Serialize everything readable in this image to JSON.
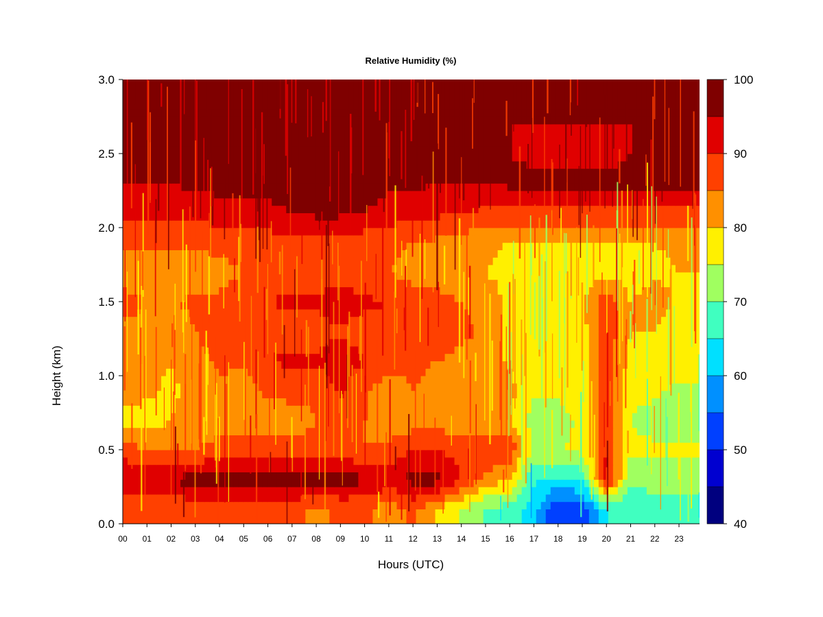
{
  "chart_data": {
    "type": "heatmap",
    "title": "Relative Humidity (%)",
    "xlabel": "Hours (UTC)",
    "ylabel": "Height (km)",
    "x_ticks": [
      "00",
      "01",
      "02",
      "03",
      "04",
      "05",
      "06",
      "07",
      "08",
      "09",
      "10",
      "11",
      "12",
      "13",
      "14",
      "15",
      "16",
      "17",
      "18",
      "19",
      "20",
      "21",
      "22",
      "23"
    ],
    "y_ticks": [
      "0.0",
      "0.5",
      "1.0",
      "1.5",
      "2.0",
      "2.5",
      "3.0"
    ],
    "xlim": [
      0,
      23.85
    ],
    "ylim": [
      0,
      3.0
    ],
    "grid": false,
    "colorbar": {
      "levels": [
        40,
        45,
        50,
        55,
        60,
        65,
        70,
        75,
        80,
        85,
        90,
        95,
        100
      ],
      "labels": [
        "40",
        "50",
        "60",
        "70",
        "80",
        "90",
        "100"
      ],
      "colors": [
        "#00007F",
        "#0000D0",
        "#0040FF",
        "#0090FF",
        "#00E0FF",
        "#40FFC0",
        "#A0FF60",
        "#FFF000",
        "#FF9000",
        "#FF4000",
        "#E00000",
        "#7F0000"
      ]
    },
    "x": [
      0,
      1,
      2,
      3,
      4,
      5,
      6,
      7,
      8,
      9,
      10,
      11,
      12,
      13,
      14,
      15,
      16,
      17,
      18,
      19,
      20,
      21,
      22,
      23
    ],
    "y": [
      0.1,
      0.3,
      0.5,
      0.7,
      0.9,
      1.1,
      1.3,
      1.5,
      1.7,
      1.9,
      2.1,
      2.3,
      2.5,
      2.7,
      2.9
    ],
    "z": [
      [
        86,
        86,
        86,
        86,
        88,
        86,
        86,
        86,
        84,
        86,
        86,
        82,
        86,
        80,
        75,
        70,
        68,
        62,
        50,
        52,
        65,
        66,
        66,
        67
      ],
      [
        96,
        95,
        96,
        97,
        97,
        98,
        98,
        98,
        98,
        97,
        96,
        93,
        97,
        97,
        90,
        83,
        80,
        66,
        64,
        66,
        92,
        71,
        73,
        72
      ],
      [
        87,
        85,
        84,
        85,
        87,
        88,
        88,
        87,
        87,
        87,
        85,
        86,
        90,
        90,
        88,
        90,
        89,
        74,
        74,
        77,
        90,
        76,
        76,
        76
      ],
      [
        78,
        78,
        80,
        82,
        83,
        82,
        82,
        82,
        85,
        85,
        85,
        82,
        82,
        83,
        80,
        82,
        80,
        73,
        73,
        76,
        88,
        75,
        73,
        71
      ],
      [
        82,
        81,
        79,
        82,
        84,
        82,
        86,
        87,
        86,
        91,
        86,
        82,
        85,
        83,
        82,
        82,
        82,
        76,
        76,
        78,
        88,
        76,
        76,
        74
      ],
      [
        83,
        82,
        80,
        83,
        86,
        86,
        90,
        91,
        91,
        93,
        90,
        88,
        86,
        85,
        84,
        84,
        79,
        77,
        77,
        78,
        89,
        78,
        80,
        78
      ],
      [
        84,
        83,
        81,
        85,
        88,
        85,
        87,
        88,
        88,
        89,
        88,
        88,
        88,
        87,
        86,
        84,
        79,
        78,
        78,
        78,
        88,
        80,
        80,
        77
      ],
      [
        87,
        85,
        85,
        86,
        86,
        88,
        90,
        91,
        91,
        93,
        91,
        90,
        88,
        87,
        85,
        84,
        78,
        79,
        79,
        80,
        88,
        80,
        82,
        79
      ],
      [
        83,
        81,
        81,
        82,
        83,
        85,
        87,
        87,
        86,
        88,
        86,
        85,
        83,
        82,
        81,
        80,
        78,
        77,
        76,
        77,
        78,
        78,
        79,
        80
      ],
      [
        86,
        86,
        86,
        86,
        87,
        88,
        88,
        88,
        88,
        88,
        87,
        86,
        85,
        84,
        83,
        81,
        80,
        79,
        79,
        80,
        79,
        80,
        80,
        81
      ],
      [
        92,
        92,
        92,
        92,
        92,
        93,
        93,
        95,
        96,
        96,
        95,
        93,
        92,
        91,
        90,
        89,
        89,
        89,
        89,
        89,
        89,
        89,
        89,
        89
      ],
      [
        95,
        95,
        95,
        96,
        97,
        97,
        98,
        98,
        98,
        98,
        97,
        96,
        96,
        95,
        95,
        95,
        96,
        96,
        96,
        96,
        96,
        96,
        96,
        96
      ],
      [
        96,
        96,
        96,
        97,
        98,
        98,
        98,
        98,
        98,
        98,
        98,
        97,
        97,
        96,
        96,
        96,
        95,
        94,
        94,
        94,
        94,
        95,
        95,
        95
      ],
      [
        96,
        96,
        96,
        97,
        98,
        98,
        98,
        98,
        98,
        98,
        98,
        96,
        97,
        96,
        95,
        95,
        95,
        95,
        95,
        95,
        95,
        95,
        95,
        95
      ],
      [
        96,
        96,
        96,
        96,
        97,
        97,
        97,
        97,
        97,
        97,
        97,
        96,
        96,
        95,
        95,
        96,
        96,
        96,
        96,
        96,
        96,
        96,
        96,
        96
      ]
    ]
  }
}
